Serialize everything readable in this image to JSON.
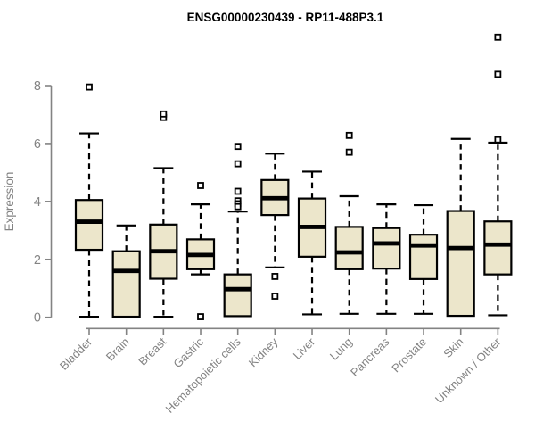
{
  "title": "ENSG00000230439 - RP11-488P3.1",
  "colors": {
    "background": "#FFFFFF",
    "box_fill": "#ECE6CB",
    "box_border": "#000000",
    "axis_and_labels": "#838383",
    "title_color": "#000000"
  },
  "chart_data": {
    "type": "boxplot",
    "title": "ENSG00000230439 - RP11-488P3.1",
    "xlabel": "",
    "ylabel": "Expression",
    "ylim": [
      0,
      9.9
    ],
    "yticks": [
      0,
      2,
      4,
      6,
      8
    ],
    "grid": false,
    "legend": "none",
    "categories": [
      "Bladder",
      "Brain",
      "Breast",
      "Gastric",
      "Hematopoietic cells",
      "Kidney",
      "Liver",
      "Lung",
      "Pancreas",
      "Prostate",
      "Skin",
      "Unknown / Other"
    ],
    "series": [
      {
        "name": "Bladder",
        "whisker_low": 0.02,
        "q1": 2.33,
        "median": 3.3,
        "q3": 4.05,
        "whisker_high": 6.35,
        "outliers": [
          7.95
        ]
      },
      {
        "name": "Brain",
        "whisker_low": 0.02,
        "q1": 0.02,
        "median": 1.6,
        "q3": 2.28,
        "whisker_high": 3.17,
        "outliers": []
      },
      {
        "name": "Breast",
        "whisker_low": 0.02,
        "q1": 1.33,
        "median": 2.28,
        "q3": 3.2,
        "whisker_high": 5.15,
        "outliers": [
          6.9,
          7.02
        ]
      },
      {
        "name": "Gastric",
        "whisker_low": 1.48,
        "q1": 1.66,
        "median": 2.15,
        "q3": 2.69,
        "whisker_high": 3.9,
        "outliers": [
          4.55,
          0.02
        ]
      },
      {
        "name": "Hematopoietic cells",
        "whisker_low": 0.04,
        "q1": 0.04,
        "median": 0.97,
        "q3": 1.48,
        "whisker_high": 3.65,
        "outliers": [
          5.9,
          5.3,
          4.35,
          4.02,
          3.92,
          3.82
        ]
      },
      {
        "name": "Kidney",
        "whisker_low": 1.72,
        "q1": 3.53,
        "median": 4.11,
        "q3": 4.74,
        "whisker_high": 5.65,
        "outliers": [
          1.41,
          0.73
        ]
      },
      {
        "name": "Liver",
        "whisker_low": 0.1,
        "q1": 2.09,
        "median": 3.12,
        "q3": 4.1,
        "whisker_high": 5.03,
        "outliers": []
      },
      {
        "name": "Lung",
        "whisker_low": 0.12,
        "q1": 1.66,
        "median": 2.24,
        "q3": 3.12,
        "whisker_high": 4.18,
        "outliers": [
          6.28,
          5.7
        ]
      },
      {
        "name": "Pancreas",
        "whisker_low": 0.12,
        "q1": 1.68,
        "median": 2.55,
        "q3": 3.08,
        "whisker_high": 3.9,
        "outliers": []
      },
      {
        "name": "Prostate",
        "whisker_low": 0.12,
        "q1": 1.32,
        "median": 2.48,
        "q3": 2.85,
        "whisker_high": 3.87,
        "outliers": []
      },
      {
        "name": "Skin",
        "whisker_low": 0.05,
        "q1": 0.05,
        "median": 2.39,
        "q3": 3.67,
        "whisker_high": 6.16,
        "outliers": []
      },
      {
        "name": "Unknown / Other",
        "whisker_low": 0.07,
        "q1": 1.48,
        "median": 2.51,
        "q3": 3.31,
        "whisker_high": 6.03,
        "outliers": [
          6.13,
          8.39,
          9.67
        ]
      }
    ]
  }
}
